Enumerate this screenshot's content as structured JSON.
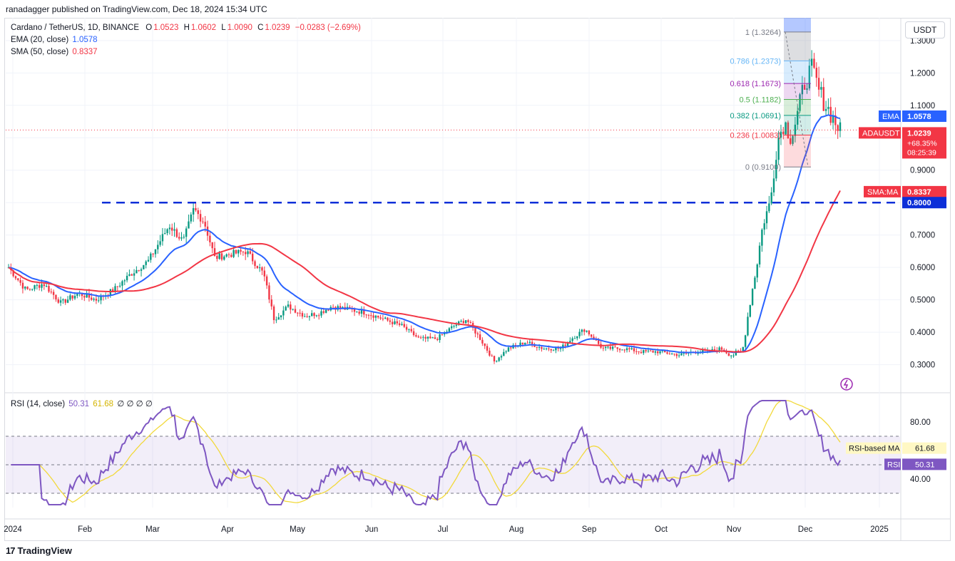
{
  "publisher": "ranadagger published on TradingView.com, Dec 18, 2024 15:34 UTC",
  "footer_logo": "TradingView",
  "currency_button": "USDT",
  "legend": {
    "symbol": "Cardano / TetherUS, 1D, BINANCE",
    "o_label": "O",
    "o_value": "1.0523",
    "h_label": "H",
    "h_value": "1.0602",
    "l_label": "L",
    "l_value": "1.0090",
    "c_label": "C",
    "c_value": "1.0239",
    "change": "−0.0283 (−2.69%)",
    "ema_label": "EMA (20, close)",
    "ema_value": "1.0578",
    "sma_label": "SMA (50, close)",
    "sma_value": "0.8337",
    "rsi_label": "RSI (14, close)",
    "rsi_value": "50.31",
    "rsi_ma_value": "61.68",
    "rsi_extra": "∅ ∅ ∅ ∅"
  },
  "colors": {
    "up": "#089981",
    "down": "#f23645",
    "ema": "#2962ff",
    "sma": "#f23645",
    "rsi": "#7e57c2",
    "rsi_ma": "#f2d93b",
    "level_line": "#0d2fd8"
  },
  "chart_data": {
    "type": "candlestick",
    "price_axis_ticks": [
      "1.3000",
      "1.2000",
      "1.1000",
      "1.0000",
      "0.9000",
      "0.8000",
      "0.7000",
      "0.6000",
      "0.5000",
      "0.4000",
      "0.3000"
    ],
    "price_range": [
      0.22,
      1.37
    ],
    "time_axis_labels": [
      "2024",
      "Feb",
      "Mar",
      "Apr",
      "May",
      "Jun",
      "Jul",
      "Aug",
      "Sep",
      "Oct",
      "Nov",
      "Dec",
      "2025"
    ],
    "horizontal_level": 0.8,
    "horizontal_level_label": "0.8000",
    "fib": {
      "levels": [
        {
          "label": "1 (1.3264)",
          "value": 1.3264
        },
        {
          "label": "0.786 (1.2373)",
          "value": 1.2373
        },
        {
          "label": "0.618 (1.1673)",
          "value": 1.1673
        },
        {
          "label": "0.5 (1.1182)",
          "value": 1.1182
        },
        {
          "label": "0.382 (1.0691)",
          "value": 1.0691
        },
        {
          "label": "0.236 (1.0083)",
          "value": 1.0083
        },
        {
          "label": "0 (0.9100)",
          "value": 0.91
        }
      ]
    },
    "price_path_by_month": [
      {
        "month": "2024",
        "close": 0.59
      },
      {
        "month": "Feb",
        "close": 0.52
      },
      {
        "month": "Mar",
        "close": 0.76
      },
      {
        "month": "Apr",
        "close": 0.62
      },
      {
        "month": "May",
        "close": 0.46
      },
      {
        "month": "Jun",
        "close": 0.46
      },
      {
        "month": "Jul",
        "close": 0.4
      },
      {
        "month": "Aug",
        "close": 0.32
      },
      {
        "month": "Sep",
        "close": 0.35
      },
      {
        "month": "Oct",
        "close": 0.35
      },
      {
        "month": "Nov",
        "close": 0.34
      },
      {
        "month": "Dec",
        "close": 1.1
      }
    ],
    "tags": [
      {
        "name": "EMA",
        "value": "1.0578"
      },
      {
        "name": "ADAUSDT",
        "value": "1.0239",
        "extra1": "+68.35%",
        "extra2": "08:25:39"
      },
      {
        "name": "SMA:MA",
        "value": "0.8337"
      }
    ],
    "rsi": {
      "ticks": [
        "80.00",
        "40.00"
      ],
      "upper_band": 70,
      "lower_band": 30,
      "mid": 50,
      "range": [
        20,
        100
      ],
      "rsi_label": "RSI",
      "rsi_value": "50.31",
      "ma_label": "RSI-based MA",
      "ma_value": "61.68"
    }
  }
}
